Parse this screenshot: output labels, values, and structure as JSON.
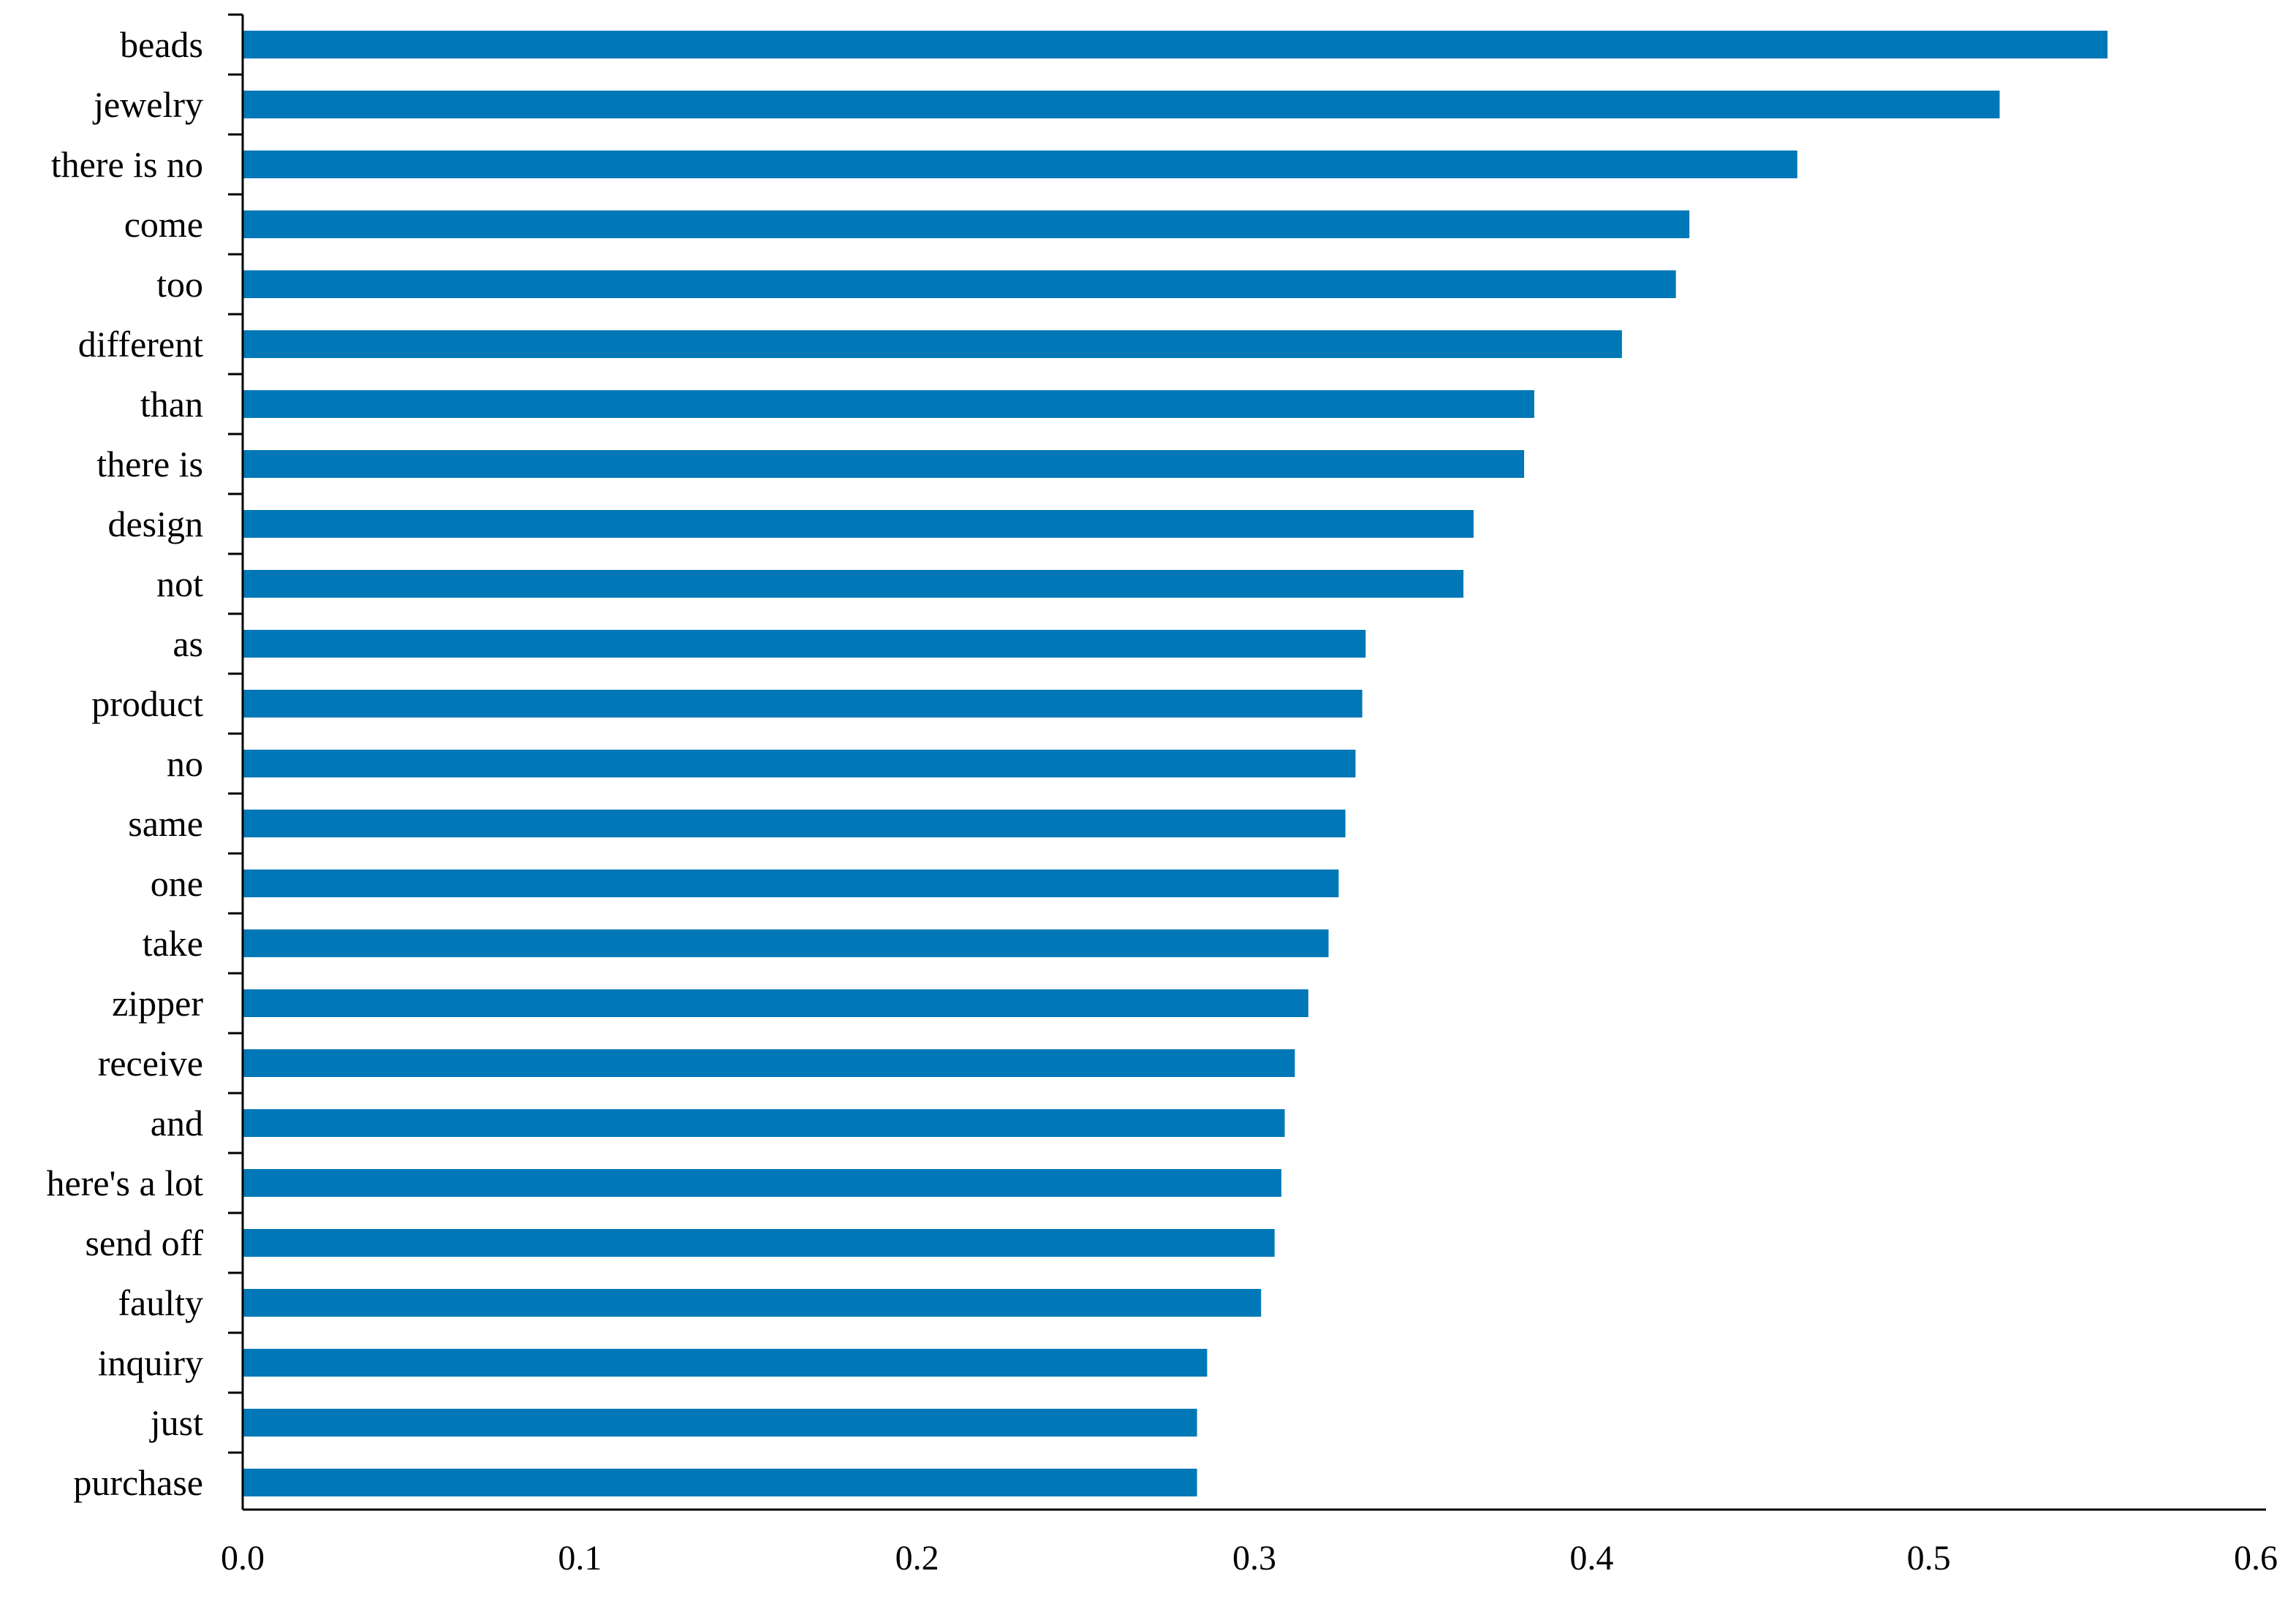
{
  "colors": {
    "bar": "#0077B6",
    "axis": "#000000",
    "text": "#000000",
    "background": "#FFFFFF"
  },
  "chart_data": {
    "type": "bar",
    "orientation": "horizontal",
    "title": "",
    "xlabel": "",
    "ylabel": "",
    "grid": false,
    "legend": "none",
    "xlim": [
      0,
      0.6
    ],
    "xticks": [
      "0.0",
      "0.1",
      "0.2",
      "0.3",
      "0.4",
      "0.5",
      "0.6"
    ],
    "categories": [
      "beads",
      "jewelry",
      "there is no",
      "come",
      "too",
      "different",
      "than",
      "there is",
      "design",
      "not",
      "as",
      "product",
      "no",
      "same",
      "one",
      "take",
      "zipper",
      "receive",
      "and",
      "here's a lot",
      "send off",
      "faulty",
      "inquiry",
      "just",
      "purchase"
    ],
    "values": [
      0.553,
      0.521,
      0.461,
      0.429,
      0.425,
      0.409,
      0.383,
      0.38,
      0.365,
      0.362,
      0.333,
      0.332,
      0.33,
      0.327,
      0.325,
      0.322,
      0.316,
      0.312,
      0.309,
      0.308,
      0.306,
      0.302,
      0.286,
      0.283,
      0.283
    ]
  }
}
